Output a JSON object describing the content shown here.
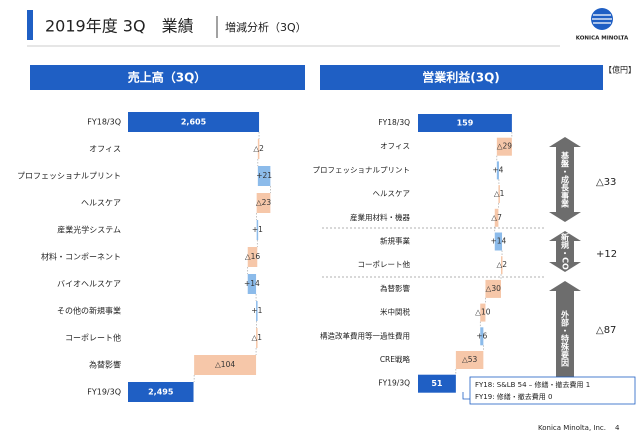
{
  "header": {
    "title": "2019年度 3Q　業績",
    "subtitle": "増減分析（3Q）",
    "logo": "KONICA MINOLTA"
  },
  "unit_label": "【億円】",
  "chart_data": [
    {
      "type": "waterfall",
      "title": "売上高（3Q）",
      "categories": [
        "FY18/3Q",
        "オフィス",
        "プロフェッショナルプリント",
        "ヘルスケア",
        "産業光学システム",
        "材料・コンポーネント",
        "バイオヘルスケア",
        "その他の新規事業",
        "コーポレート他",
        "為替影響",
        "FY19/3Q"
      ],
      "values": [
        2605,
        -2,
        21,
        -23,
        1,
        -16,
        14,
        1,
        -1,
        -104,
        2495
      ],
      "value_labels": [
        "2,605",
        "△2",
        "+21",
        "△23",
        "+1",
        "△16",
        "+14",
        "+1",
        "△1",
        "△104",
        "2,495"
      ],
      "xlim": [
        2385,
        2615
      ],
      "total_color": "#1f5fc4",
      "increase_color": "#8cbbea",
      "decrease_color": "#f6c7a9"
    },
    {
      "type": "waterfall",
      "title": "営業利益(3Q)",
      "categories": [
        "FY18/3Q",
        "オフィス",
        "プロフェッショナルプリント",
        "ヘルスケア",
        "産業用材料・機器",
        "新規事業",
        "コーポレート他",
        "為替影響",
        "米中関税",
        "構造改革費用等一過性費用",
        "CRE戦略",
        "FY19/3Q"
      ],
      "values": [
        159,
        -29,
        4,
        -1,
        -7,
        14,
        -2,
        -30,
        -10,
        6,
        -53,
        51
      ],
      "value_labels": [
        "159",
        "△29",
        "+4",
        "△1",
        "△7",
        "+14",
        "△2",
        "△30",
        "△10",
        "+6",
        "△53",
        "51"
      ],
      "xlim": [
        -22,
        165
      ],
      "total_color": "#1f5fc4",
      "increase_color": "#8cbbea",
      "decrease_color": "#f6c7a9",
      "groups": [
        {
          "label": "基盤・成長事業",
          "value_label": "△33"
        },
        {
          "label": "新規・CO",
          "value_label": "+12"
        },
        {
          "label": "外部・特殊要因",
          "value_label": "△87"
        }
      ],
      "note": [
        "FY18: S&LB 54 – 修繕・撤去費用 1",
        "FY19: 修繕・撤去費用 0"
      ]
    }
  ],
  "footer": {
    "company": "Konica Minolta, Inc.",
    "page": "4"
  }
}
